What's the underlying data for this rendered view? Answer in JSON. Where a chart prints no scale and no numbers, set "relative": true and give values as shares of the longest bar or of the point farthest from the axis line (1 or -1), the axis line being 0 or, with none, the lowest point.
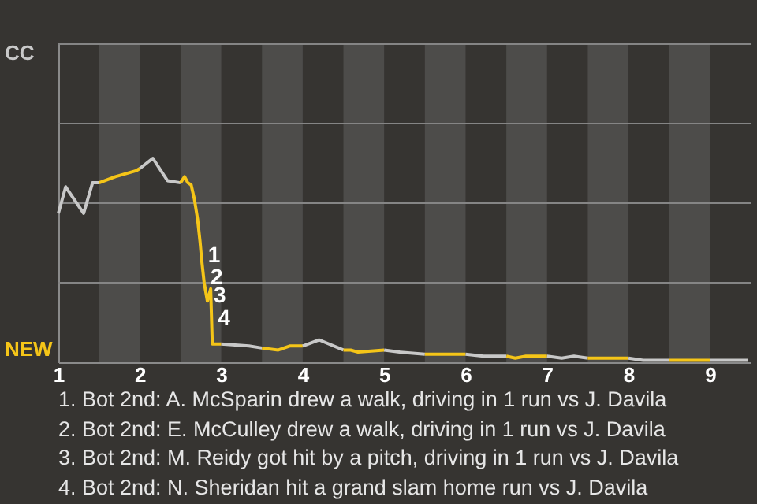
{
  "chart_data": {
    "type": "line",
    "relative": true,
    "series": [
      {
        "color": "#c8c8c8",
        "x": [
          1,
          1.09,
          1.31,
          1.42,
          1.5
        ],
        "values": [
          0.73,
          0.86,
          0.73,
          0.88,
          0.88
        ]
      },
      {
        "color": "#f5c518",
        "x": [
          1.5,
          1.7,
          1.96,
          2
        ],
        "values": [
          0.88,
          0.91,
          0.94,
          0.95
        ]
      },
      {
        "color": "#c8c8c8",
        "x": [
          2,
          2.16,
          2.34,
          2.5
        ],
        "values": [
          0.95,
          1,
          0.89,
          0.88
        ]
      },
      {
        "color": "#f5c518",
        "x": [
          2.5,
          2.55,
          2.59,
          2.63,
          2.67,
          2.71,
          2.74,
          2.76,
          2.79,
          2.83,
          2.87,
          2.89,
          3
        ],
        "values": [
          0.88,
          0.91,
          0.88,
          0.87,
          0.8,
          0.7,
          0.59,
          0.5,
          0.39,
          0.3,
          0.36,
          0.09,
          0.09
        ]
      },
      {
        "color": "#c8c8c8",
        "x": [
          3,
          3.34,
          3.5
        ],
        "values": [
          0.09,
          0.08,
          0.07
        ]
      },
      {
        "color": "#f5c518",
        "x": [
          3.5,
          3.7,
          3.84,
          4
        ],
        "values": [
          0.07,
          0.06,
          0.08,
          0.08
        ]
      },
      {
        "color": "#c8c8c8",
        "x": [
          4,
          4.2,
          4.5
        ],
        "values": [
          0.08,
          0.11,
          0.06
        ]
      },
      {
        "color": "#f5c518",
        "x": [
          4.5,
          4.59,
          4.68,
          5
        ],
        "values": [
          0.06,
          0.06,
          0.05,
          0.06
        ]
      },
      {
        "color": "#c8c8c8",
        "x": [
          5,
          5.19,
          5.5
        ],
        "values": [
          0.06,
          0.05,
          0.04
        ]
      },
      {
        "color": "#f5c518",
        "x": [
          5.5,
          5.76,
          6
        ],
        "values": [
          0.04,
          0.04,
          0.04
        ]
      },
      {
        "color": "#c8c8c8",
        "x": [
          6,
          6.22,
          6.5
        ],
        "values": [
          0.04,
          0.03,
          0.03
        ]
      },
      {
        "color": "#f5c518",
        "x": [
          6.5,
          6.61,
          6.74,
          7
        ],
        "values": [
          0.03,
          0.02,
          0.03,
          0.03
        ]
      },
      {
        "color": "#c8c8c8",
        "x": [
          7,
          7.18,
          7.33,
          7.5
        ],
        "values": [
          0.03,
          0.02,
          0.03,
          0.02
        ]
      },
      {
        "color": "#f5c518",
        "x": [
          7.5,
          7.73,
          8
        ],
        "values": [
          0.02,
          0.02,
          0.02
        ]
      },
      {
        "color": "#c8c8c8",
        "x": [
          8,
          8.18,
          8.5
        ],
        "values": [
          0.02,
          0.01,
          0.01
        ]
      },
      {
        "color": "#f5c518",
        "x": [
          8.5,
          8.76,
          9
        ],
        "values": [
          0.01,
          0.01,
          0.01
        ]
      },
      {
        "color": "#c8c8c8",
        "x": [
          9,
          9.47
        ],
        "values": [
          0.01,
          0.01
        ]
      }
    ],
    "xlim": [
      1,
      9.5
    ],
    "xticks": [
      1,
      2,
      3,
      4,
      5,
      6,
      7,
      8,
      9
    ],
    "ref_lines": [
      {
        "axis": "y",
        "value": 0.39,
        "color": "#858585"
      },
      {
        "axis": "y",
        "value": 0.78,
        "color": "#858585"
      },
      {
        "axis": "y",
        "value": 1.17,
        "color": "#858585"
      },
      {
        "axis": "y",
        "value": 1.56,
        "color": "#858585"
      }
    ],
    "bands": [
      {
        "axis": "x",
        "from": 1.5,
        "to": 2,
        "color": "#4d4c4a"
      },
      {
        "axis": "x",
        "from": 2.5,
        "to": 3,
        "color": "#4d4c4a"
      },
      {
        "axis": "x",
        "from": 3.5,
        "to": 4,
        "color": "#4d4c4a"
      },
      {
        "axis": "x",
        "from": 4.5,
        "to": 5,
        "color": "#4d4c4a"
      },
      {
        "axis": "x",
        "from": 5.5,
        "to": 6,
        "color": "#4d4c4a"
      },
      {
        "axis": "x",
        "from": 6.5,
        "to": 7,
        "color": "#4d4c4a"
      },
      {
        "axis": "x",
        "from": 7.5,
        "to": 8,
        "color": "#4d4c4a"
      },
      {
        "axis": "x",
        "from": 8.5,
        "to": 9,
        "color": "#4d4c4a"
      }
    ],
    "annotations": [
      "CC",
      "NEW",
      {
        "text": "1",
        "x": 2.76,
        "y": 0.5
      },
      {
        "text": "2",
        "x": 2.79,
        "y": 0.39
      },
      {
        "text": "3",
        "x": 2.83,
        "y": 0.3
      },
      {
        "text": "4",
        "x": 2.88,
        "y": 0.19
      },
      "1. Bot 2nd: A. McSparin drew a walk, driving in 1 run vs J. Davila",
      "2. Bot 2nd: E. McCulley drew a walk, driving in 1 run vs J. Davila",
      "3. Bot 2nd: M. Reidy got hit by a pitch, driving in 1 run vs J. Davila",
      "4. Bot 2nd: N. Sheridan hit a grand slam home run vs J. Davila"
    ]
  }
}
